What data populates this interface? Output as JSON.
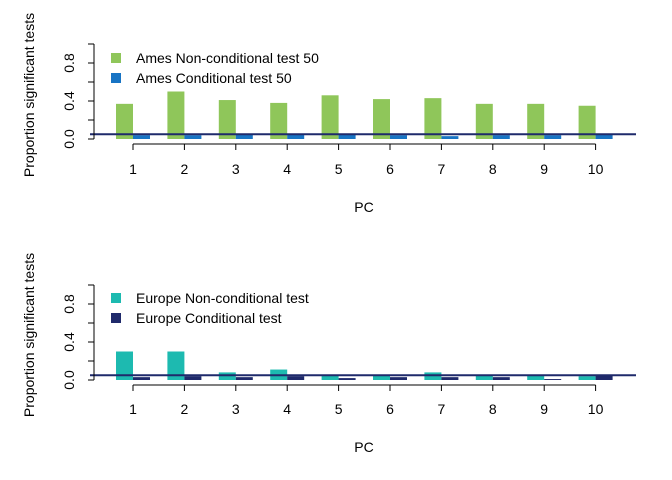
{
  "chart_data": [
    {
      "type": "bar",
      "xlabel": "PC",
      "ylabel": "Proportion significant tests",
      "categories": [
        "1",
        "2",
        "3",
        "4",
        "5",
        "6",
        "7",
        "8",
        "9",
        "10"
      ],
      "ylim": [
        0,
        1
      ],
      "yticks": [
        "0.0",
        "0.4",
        "0.8"
      ],
      "reference_line": 0.05,
      "legend_position": "top-left",
      "grid": false,
      "series": [
        {
          "name": "Ames Non-conditional test 50",
          "color": "#8FC65A",
          "values": [
            0.37,
            0.5,
            0.41,
            0.38,
            0.46,
            0.42,
            0.43,
            0.37,
            0.37,
            0.35
          ]
        },
        {
          "name": "Ames Conditional test 50",
          "color": "#1874C4",
          "values": [
            0.04,
            0.04,
            0.05,
            0.05,
            0.05,
            0.04,
            0.03,
            0.04,
            0.04,
            0.05
          ]
        }
      ]
    },
    {
      "type": "bar",
      "xlabel": "PC",
      "ylabel": "Proportion significant tests",
      "categories": [
        "1",
        "2",
        "3",
        "4",
        "5",
        "6",
        "7",
        "8",
        "9",
        "10"
      ],
      "ylim": [
        0,
        1
      ],
      "yticks": [
        "0.0",
        "0.4",
        "0.8"
      ],
      "reference_line": 0.05,
      "legend_position": "top-left",
      "grid": false,
      "series": [
        {
          "name": "Europe Non-conditional test",
          "color": "#1DBAB0",
          "values": [
            0.3,
            0.3,
            0.08,
            0.11,
            0.05,
            0.05,
            0.08,
            0.05,
            0.05,
            0.04
          ]
        },
        {
          "name": "Europe Conditional test",
          "color": "#1F2A6B",
          "values": [
            0.03,
            0.04,
            0.03,
            0.04,
            0.02,
            0.03,
            0.03,
            0.03,
            0.01,
            0.05
          ]
        }
      ]
    }
  ]
}
